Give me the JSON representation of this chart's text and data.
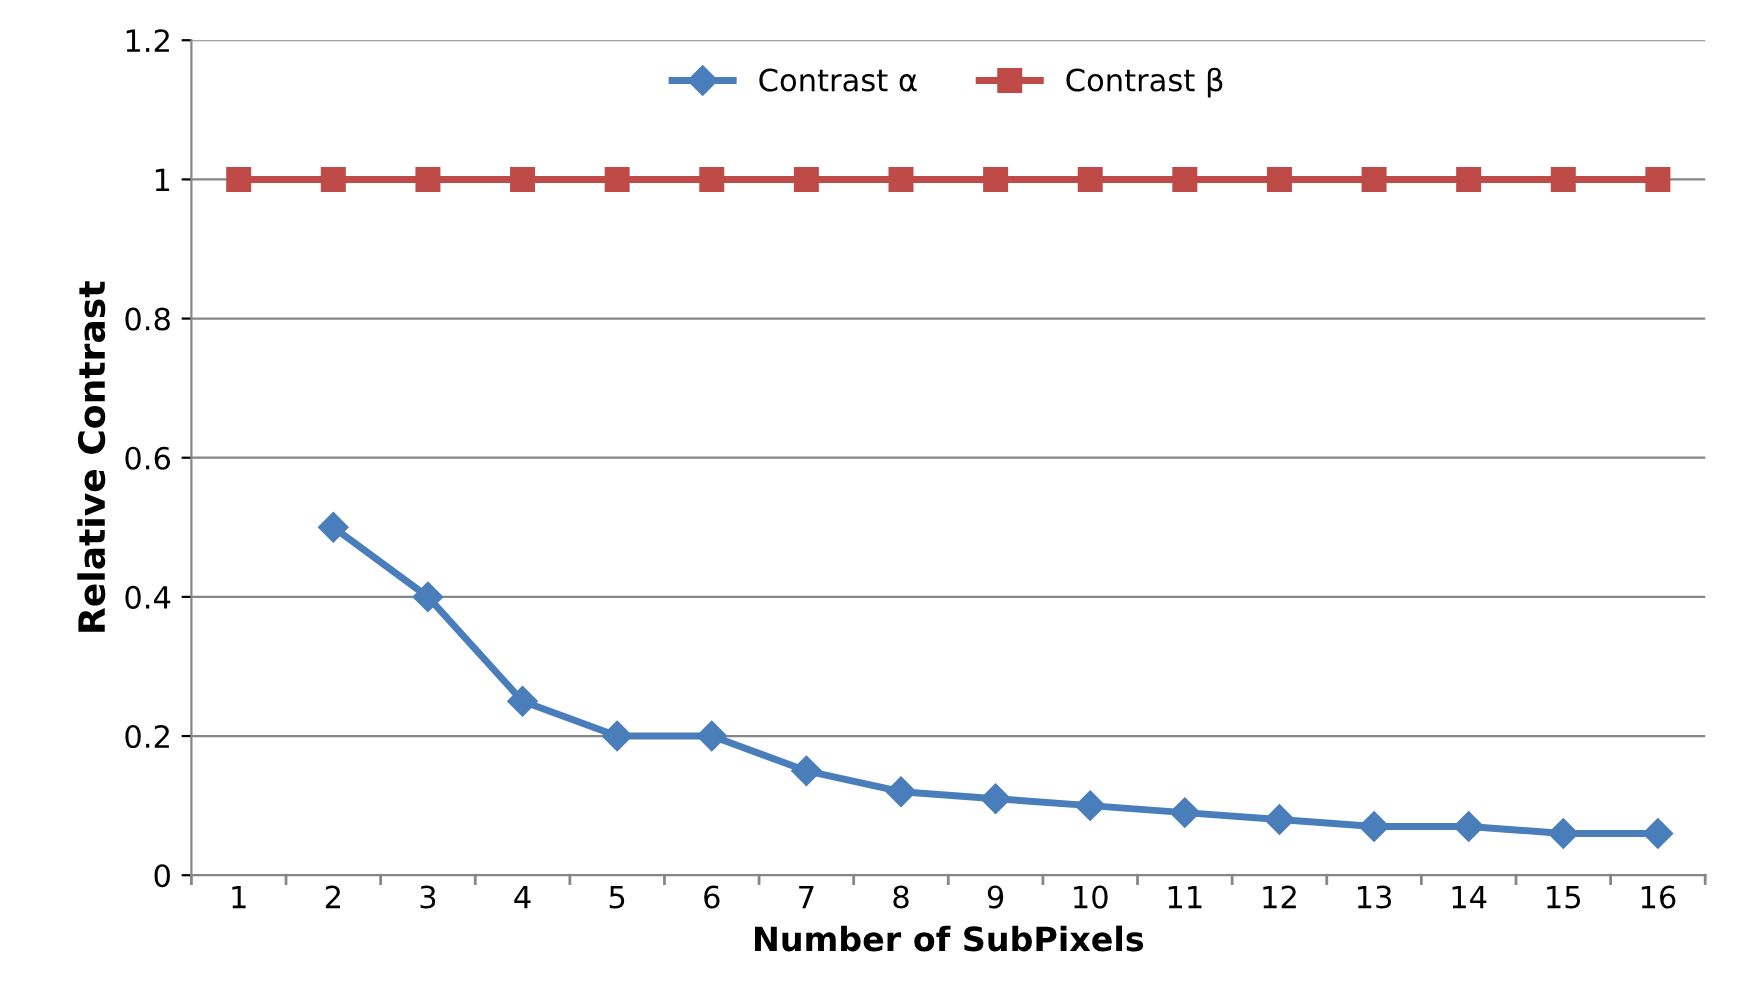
{
  "chart_data": {
    "type": "line",
    "xlabel": "Number of SubPixels",
    "ylabel": "Relative Contrast",
    "categories": [
      "1",
      "2",
      "3",
      "4",
      "5",
      "6",
      "7",
      "8",
      "9",
      "10",
      "11",
      "12",
      "13",
      "14",
      "15",
      "16"
    ],
    "series": [
      {
        "name": "Contrast α",
        "color": "#4a7ebb",
        "marker": "diamond",
        "values": [
          null,
          0.5,
          0.4,
          0.25,
          0.2,
          0.2,
          0.15,
          0.12,
          0.11,
          0.1,
          0.09,
          0.08,
          0.07,
          0.07,
          0.06,
          0.06
        ]
      },
      {
        "name": "Contrast β",
        "color": "#be4b48",
        "marker": "square",
        "values": [
          1,
          1,
          1,
          1,
          1,
          1,
          1,
          1,
          1,
          1,
          1,
          1,
          1,
          1,
          1,
          1
        ]
      }
    ],
    "ylim": [
      0,
      1.2
    ],
    "yticks": [
      0,
      0.2,
      0.4,
      0.6,
      0.8,
      1,
      1.2
    ],
    "grid": "y",
    "legend": "top"
  }
}
